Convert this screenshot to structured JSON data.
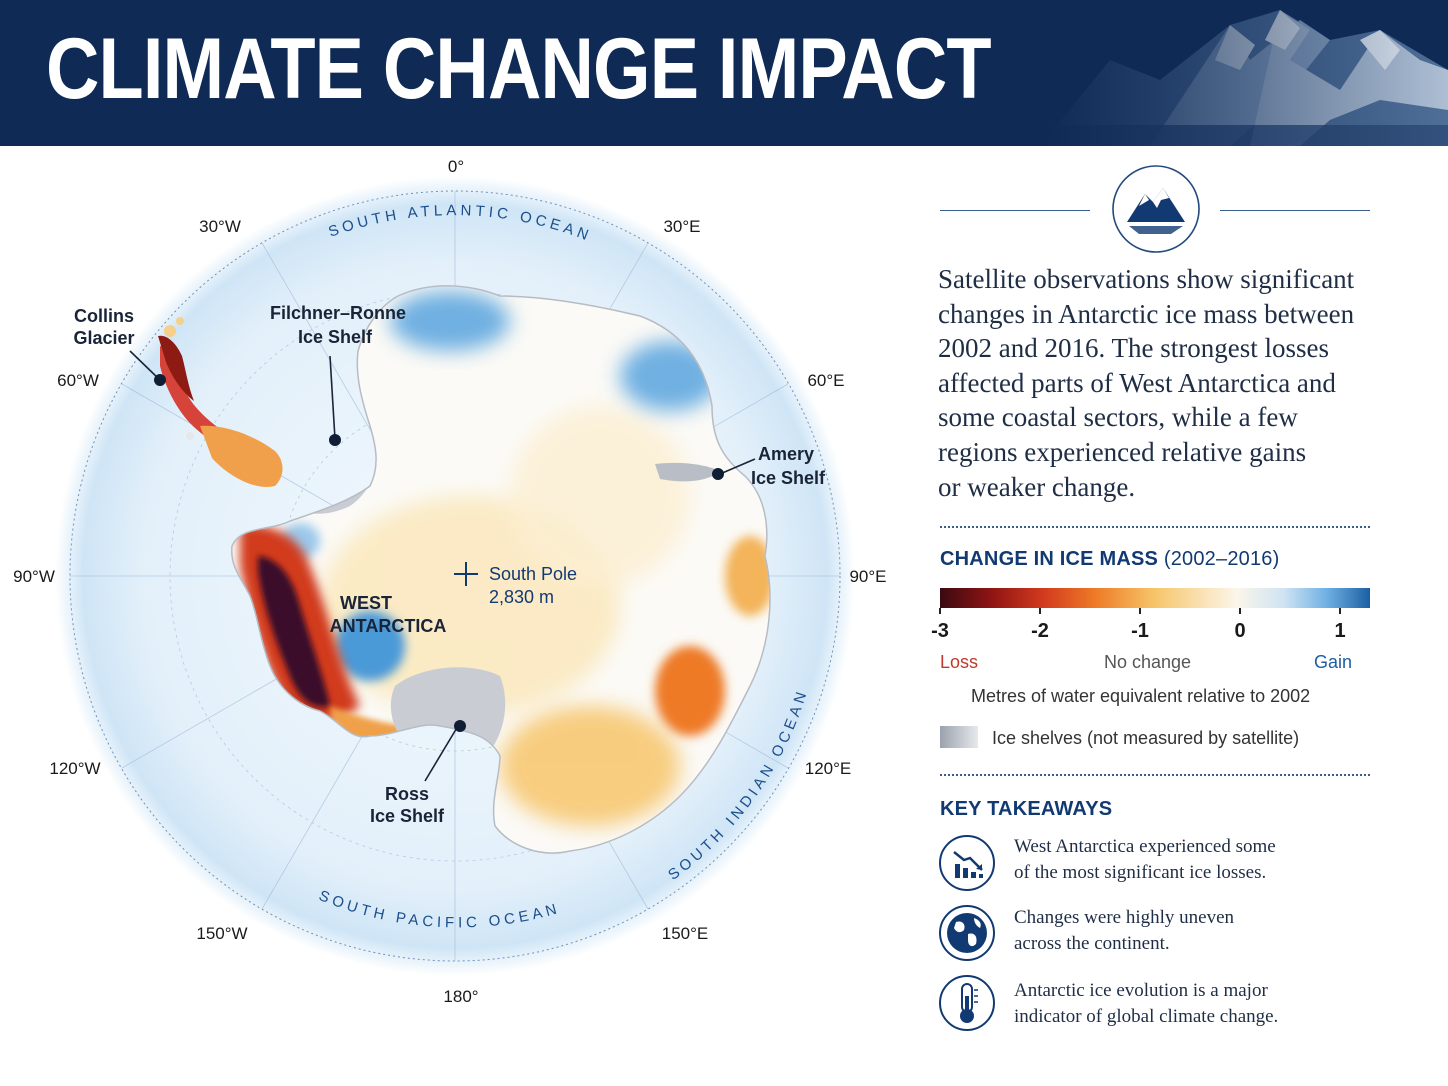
{
  "header": {
    "title": "CLIMATE CHANGE IMPACT"
  },
  "map": {
    "labels": {
      "meridian_0": "0°",
      "w30": "30°W",
      "e30": "30°E",
      "w60": "60°W",
      "e60": "60°E",
      "w90": "90°W",
      "e90": "90°E",
      "w120": "120°W",
      "e120": "120°E",
      "w150": "150°W",
      "e150": "150°E",
      "m180": "180°"
    },
    "oceans": {
      "atlantic": "SOUTH ATLANTIC OCEAN",
      "pacific": "SOUTH PACIFIC OCEAN",
      "indian": "SOUTH INDIAN OCEAN"
    },
    "places": {
      "collins_1": "Collins",
      "collins_2": "Glacier",
      "filchner_1": "Filchner–Ronne",
      "filchner_2": "Ice Shelf",
      "amery_1": "Amery",
      "amery_2": "Ice Shelf",
      "pole_1": "South Pole",
      "pole_2": "2,830 m",
      "west_1": "WEST",
      "west_2": "ANTARCTICA",
      "ross_1": "Ross",
      "ross_2": "Ice Shelf"
    },
    "colors": {
      "loss_dark": "#3b0a2a",
      "loss": "#c8301c",
      "orange": "#ee8a2e",
      "yellow": "#f8cf75",
      "gain": "#3f95d8",
      "shelf": "#c9cdd3",
      "ocean": "#dceefa"
    }
  },
  "panel": {
    "icon": "mountain-iceberg-icon",
    "intro_lines": [
      "Satellite observations show significant",
      "changes in Antarctic ice mass between",
      "2002 and 2016. The strongest losses",
      "affected parts of West Antarctica and",
      "some coastal sectors, while a few",
      "regions experienced relative gains",
      "or weaker change."
    ],
    "legend": {
      "title": "CHANGE IN ICE MASS",
      "years": "(2002–2016)",
      "ticks": [
        "-3",
        "-2",
        "-1",
        "0",
        "1"
      ],
      "tick_values": [
        -3,
        -2,
        -1,
        0,
        1
      ],
      "range": [
        -3,
        1.3
      ],
      "loss": "Loss",
      "no_change": "No change",
      "gain": "Gain",
      "unit": "Metres of water equivalent relative to 2002",
      "shelves": "Ice shelves (not measured by satellite)",
      "loss_color": "#c0392b",
      "gain_color": "#1b5fa3"
    },
    "takeaways_title": "KEY TAKEAWAYS",
    "takeaways": [
      {
        "icon": "declining-bar-chart-icon",
        "line1": "West Antarctica experienced some",
        "line2": "of the most significant ice losses."
      },
      {
        "icon": "globe-icon",
        "line1": "Changes were highly uneven",
        "line2": "across the continent."
      },
      {
        "icon": "thermometer-icon",
        "line1": "Antarctic ice evolution is a major",
        "line2": "indicator of global climate change."
      }
    ]
  }
}
